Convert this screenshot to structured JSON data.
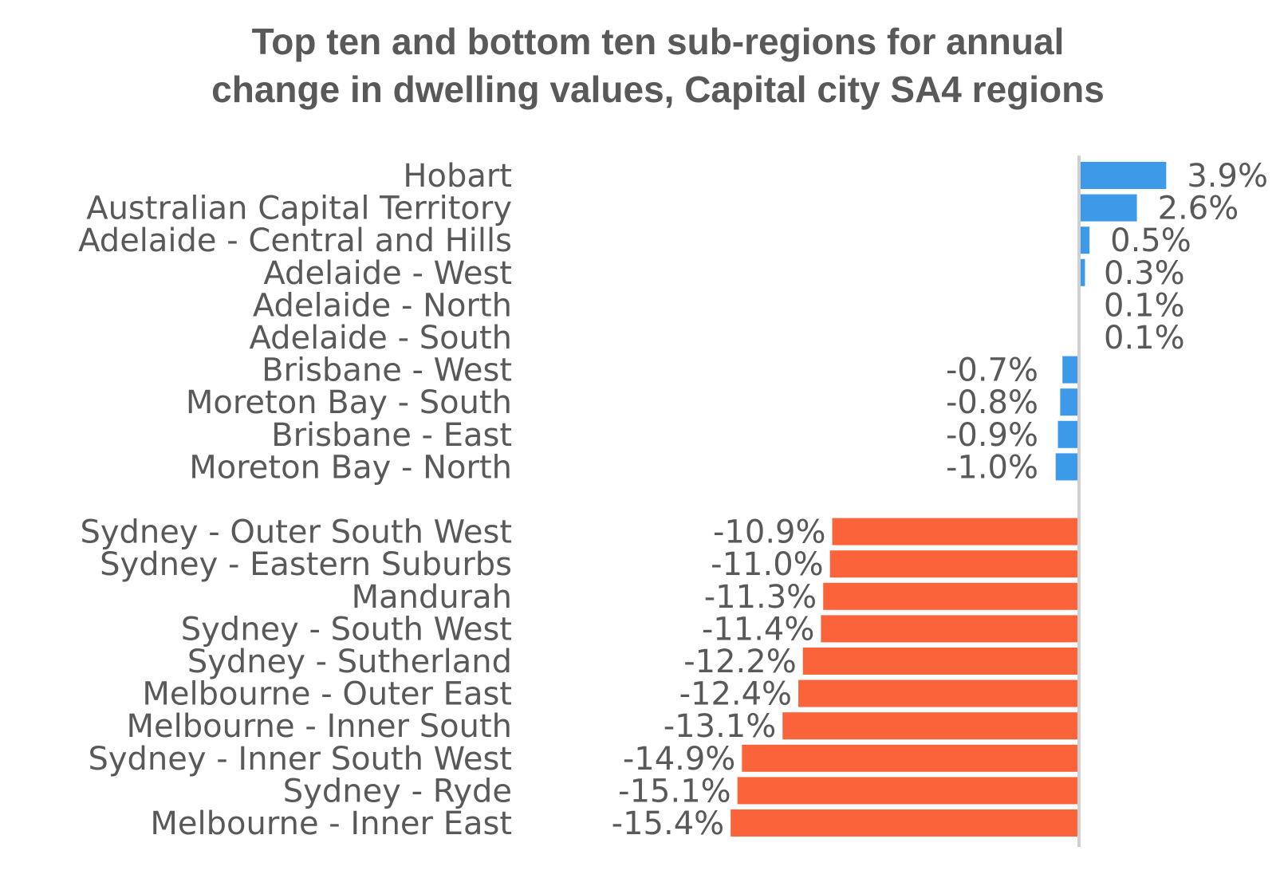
{
  "chart_data": {
    "type": "bar",
    "orientation": "horizontal",
    "title": "Top ten and bottom ten sub-regions for annual change in dwelling values, Capital city SA4 regions",
    "title_lines": [
      "Top ten and bottom ten sub-regions for annual",
      "change in dwelling values, Capital city SA4 regions"
    ],
    "xlabel": "",
    "ylabel": "",
    "grid": false,
    "legend": "none",
    "colors": {
      "positive": "#3d9ae8",
      "negative": "#fb643b",
      "axis": "#d0d0d0",
      "text": "#595959"
    },
    "groups": [
      {
        "group": "top",
        "categories": [
          "Hobart",
          "Australian Capital Territory",
          "Adelaide - Central and Hills",
          "Adelaide - West",
          "Adelaide - North",
          "Adelaide - South",
          "Brisbane - West",
          "Moreton Bay - South",
          "Brisbane - East",
          "Moreton Bay - North"
        ],
        "values": [
          3.9,
          2.6,
          0.5,
          0.3,
          0.1,
          0.1,
          -0.7,
          -0.8,
          -0.9,
          -1.0
        ],
        "labels": [
          "3.9%",
          "2.6%",
          "0.5%",
          "0.3%",
          "0.1%",
          "0.1%",
          "-0.7%",
          "-0.8%",
          "-0.9%",
          "-1.0%"
        ],
        "color": "#3d9ae8"
      },
      {
        "group": "bottom",
        "categories": [
          "Sydney - Outer South West",
          "Sydney - Eastern Suburbs",
          "Mandurah",
          "Sydney - South West",
          "Sydney - Sutherland",
          "Melbourne - Outer East",
          "Melbourne - Inner South",
          "Sydney - Inner South West",
          "Sydney - Ryde",
          "Melbourne - Inner East"
        ],
        "values": [
          -10.9,
          -11.0,
          -11.3,
          -11.4,
          -12.2,
          -12.4,
          -13.1,
          -14.9,
          -15.1,
          -15.4
        ],
        "labels": [
          "-10.9%",
          "-11.0%",
          "-11.3%",
          "-11.4%",
          "-12.2%",
          "-12.4%",
          "-13.1%",
          "-14.9%",
          "-15.1%",
          "-15.4%"
        ],
        "color": "#fb643b"
      }
    ]
  }
}
